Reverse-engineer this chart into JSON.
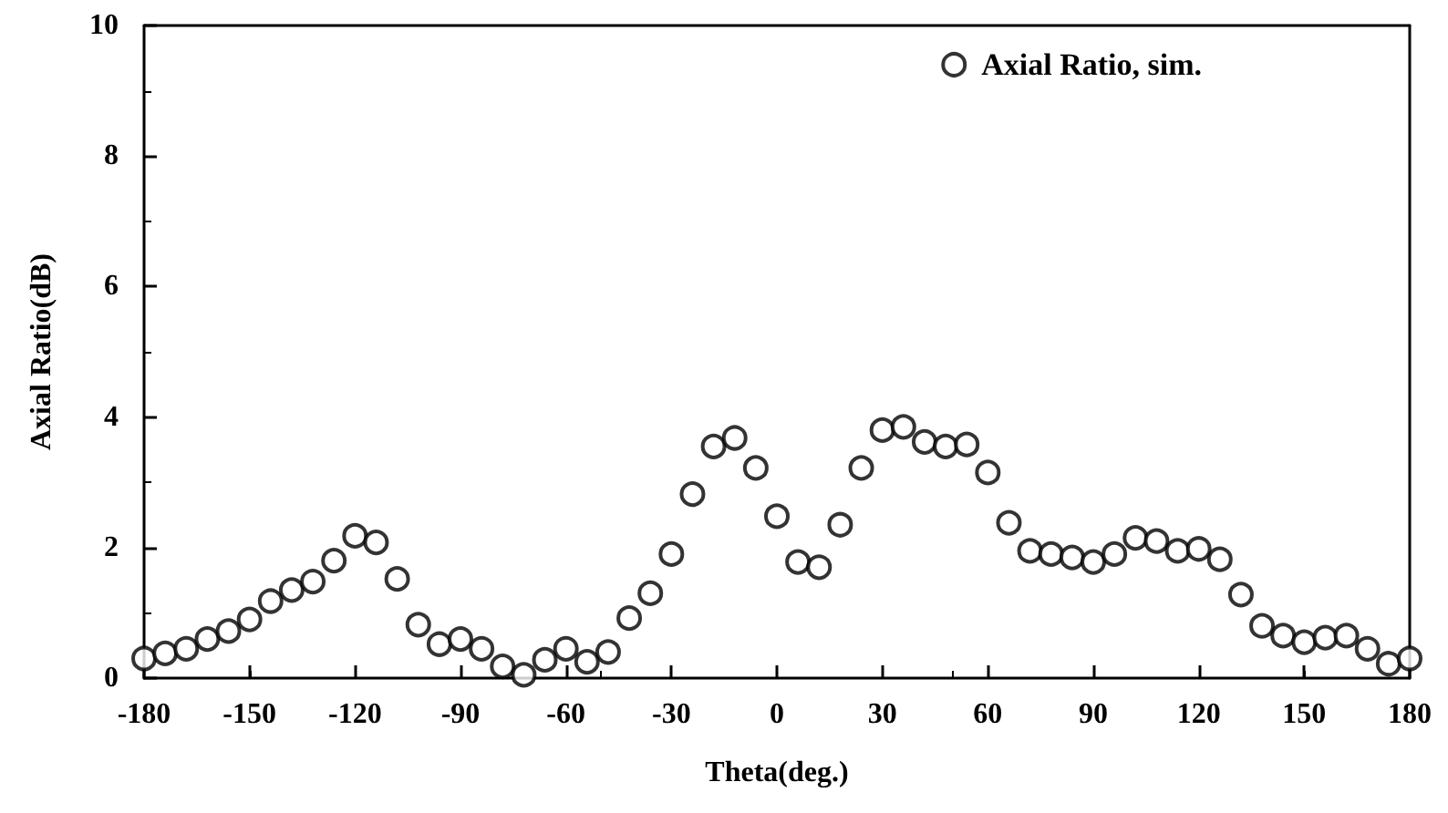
{
  "chart_data": {
    "type": "scatter",
    "xlabel": "Theta(deg.)",
    "ylabel": "Axial Ratio(dB)",
    "xlim": [
      -180,
      180
    ],
    "xticks": [
      -180,
      -150,
      -120,
      -90,
      -60,
      -30,
      0,
      30,
      60,
      90,
      120,
      150,
      180
    ],
    "ylim": [
      0,
      10
    ],
    "yticks": [
      0,
      2,
      4,
      6,
      8,
      10
    ],
    "grid": false,
    "legend": "top right",
    "marker": "circle",
    "series": [
      {
        "name": "Axial Ratio, sim.",
        "color": "#000000",
        "x": [
          -180,
          -174,
          -168,
          -162,
          -156,
          -150,
          -144,
          -138,
          -132,
          -126,
          -120,
          -114,
          -108,
          -102,
          -96,
          -90,
          -84,
          -78,
          -72,
          -66,
          -60,
          -54,
          -48,
          -42,
          -36,
          -30,
          -24,
          -18,
          -12,
          -6,
          0,
          6,
          12,
          18,
          24,
          30,
          36,
          42,
          48,
          54,
          60,
          66,
          72,
          78,
          84,
          90,
          96,
          102,
          108,
          114,
          120,
          126,
          132,
          138,
          144,
          150,
          156,
          162,
          168,
          174,
          180
        ],
        "values": [
          0.3,
          0.38,
          0.45,
          0.6,
          0.72,
          0.9,
          1.18,
          1.35,
          1.48,
          1.8,
          2.18,
          2.08,
          1.52,
          0.82,
          0.52,
          0.6,
          0.45,
          0.18,
          0.05,
          0.28,
          0.45,
          0.25,
          0.4,
          0.92,
          1.3,
          1.9,
          2.82,
          3.55,
          3.68,
          3.22,
          2.48,
          1.78,
          1.7,
          2.35,
          3.22,
          3.8,
          3.85,
          3.62,
          3.55,
          3.58,
          3.15,
          2.38,
          1.95,
          1.9,
          1.85,
          1.78,
          1.9,
          2.15,
          2.1,
          1.95,
          1.98,
          1.82,
          1.28,
          0.8,
          0.65,
          0.55,
          0.62,
          0.65,
          0.45,
          0.22,
          0.3
        ]
      }
    ]
  }
}
